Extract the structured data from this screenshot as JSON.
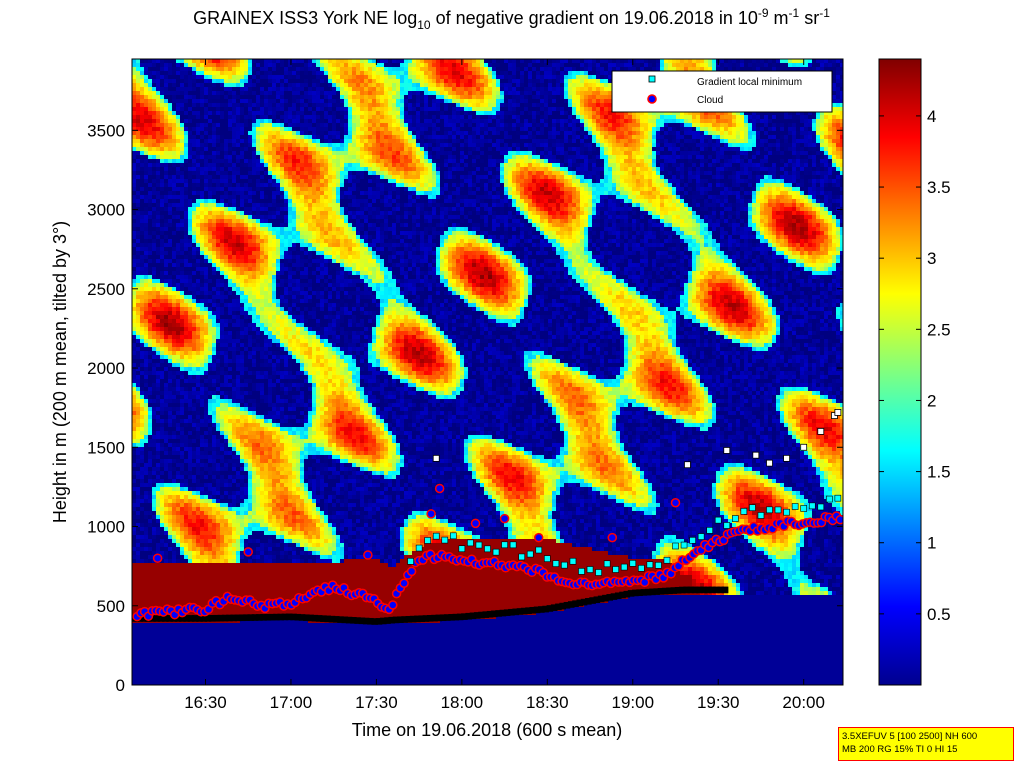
{
  "title": {
    "prefix": "GRAINEX ISS3 York NE log",
    "prefix_sub": "10",
    "middle": " of negative gradient on 19.06.2018 in 10",
    "exp1": "-9",
    "unit1": " m",
    "exp2": "-1",
    "unit2": " sr",
    "exp3": "-1"
  },
  "annotation": {
    "line1": "3.5XEFUV 5 [100 2500] NH 600",
    "line2": "MB 200 RG 15% TI 0 HI 15"
  },
  "chart_data": {
    "type": "heatmap",
    "xlabel": "Time on 19.06.2018 (600 s mean)",
    "ylabel": "Height in m (200 m mean, tilted by 3°)",
    "x_ticks": [
      "16:30",
      "17:00",
      "17:30",
      "18:00",
      "18:30",
      "19:00",
      "19:30",
      "20:00"
    ],
    "x_tick_hours": [
      16.5,
      17.0,
      17.5,
      18.0,
      18.5,
      19.0,
      19.5,
      20.0
    ],
    "xlim_hours": [
      16.07,
      20.23
    ],
    "y_ticks": [
      0,
      500,
      1000,
      1500,
      2000,
      2500,
      3000,
      3500
    ],
    "ylim": [
      0,
      3950
    ],
    "colorbar": {
      "ticks": [
        "0.5",
        "1",
        "1.5",
        "2",
        "2.5",
        "3",
        "3.5",
        "4"
      ],
      "tick_values": [
        0.5,
        1.0,
        1.5,
        2.0,
        2.5,
        3.0,
        3.5,
        4.0
      ],
      "range": [
        0,
        4.4
      ],
      "colormap": "jet"
    },
    "legend": {
      "position": "top-right",
      "items": [
        {
          "label": "Gradient local minimum",
          "marker": "square",
          "color": "#00ffff"
        },
        {
          "label": "Cloud",
          "marker": "circle",
          "face": "#0000ff",
          "edge": "#ff0000"
        }
      ]
    },
    "high_gradient_layer_top": [
      {
        "t": 16.1,
        "h": 770
      },
      {
        "t": 16.5,
        "h": 770
      },
      {
        "t": 17.0,
        "h": 770
      },
      {
        "t": 17.5,
        "h": 790
      },
      {
        "t": 17.6,
        "h": 740
      },
      {
        "t": 17.75,
        "h": 880
      },
      {
        "t": 18.0,
        "h": 930
      },
      {
        "t": 18.5,
        "h": 920
      },
      {
        "t": 19.0,
        "h": 800
      },
      {
        "t": 19.2,
        "h": 800
      },
      {
        "t": 19.3,
        "h": 690
      }
    ],
    "mixing_layer_base": [
      {
        "t": 16.1,
        "h": 420
      },
      {
        "t": 16.5,
        "h": 420
      },
      {
        "t": 17.0,
        "h": 430
      },
      {
        "t": 17.5,
        "h": 400
      },
      {
        "t": 17.6,
        "h": 410
      },
      {
        "t": 18.0,
        "h": 430
      },
      {
        "t": 18.5,
        "h": 480
      },
      {
        "t": 19.0,
        "h": 580
      },
      {
        "t": 19.3,
        "h": 600
      },
      {
        "t": 19.5,
        "h": 600
      }
    ],
    "cloud_layer": [
      {
        "t": 16.1,
        "h": 450
      },
      {
        "t": 16.3,
        "h": 460
      },
      {
        "t": 16.5,
        "h": 480
      },
      {
        "t": 16.65,
        "h": 560
      },
      {
        "t": 16.85,
        "h": 500
      },
      {
        "t": 17.0,
        "h": 520
      },
      {
        "t": 17.25,
        "h": 620
      },
      {
        "t": 17.45,
        "h": 550
      },
      {
        "t": 17.58,
        "h": 470
      },
      {
        "t": 17.65,
        "h": 640
      },
      {
        "t": 17.75,
        "h": 800
      },
      {
        "t": 17.9,
        "h": 820
      },
      {
        "t": 18.0,
        "h": 790
      },
      {
        "t": 18.2,
        "h": 760
      },
      {
        "t": 18.4,
        "h": 730
      },
      {
        "t": 18.5,
        "h": 700
      },
      {
        "t": 18.6,
        "h": 650
      },
      {
        "t": 18.8,
        "h": 640
      },
      {
        "t": 19.0,
        "h": 650
      },
      {
        "t": 19.2,
        "h": 700
      },
      {
        "t": 19.4,
        "h": 860
      },
      {
        "t": 19.6,
        "h": 960
      },
      {
        "t": 19.8,
        "h": 1000
      },
      {
        "t": 20.0,
        "h": 1030
      },
      {
        "t": 20.2,
        "h": 1050
      }
    ],
    "isolated_clouds": [
      {
        "t": 16.22,
        "h": 800
      },
      {
        "t": 16.75,
        "h": 840
      },
      {
        "t": 17.45,
        "h": 820
      },
      {
        "t": 17.87,
        "h": 1240
      },
      {
        "t": 17.82,
        "h": 1080
      },
      {
        "t": 18.08,
        "h": 1020
      },
      {
        "t": 18.25,
        "h": 1050
      },
      {
        "t": 18.45,
        "h": 930
      },
      {
        "t": 18.88,
        "h": 930
      },
      {
        "t": 19.25,
        "h": 1150
      }
    ],
    "high_gradient_minima": [
      {
        "t": 17.85,
        "h": 1430
      },
      {
        "t": 19.55,
        "h": 1480
      },
      {
        "t": 19.72,
        "h": 1450
      },
      {
        "t": 19.8,
        "h": 1400
      },
      {
        "t": 19.9,
        "h": 1430
      },
      {
        "t": 20.0,
        "h": 1500
      },
      {
        "t": 20.1,
        "h": 1600
      },
      {
        "t": 20.18,
        "h": 1700
      },
      {
        "t": 20.2,
        "h": 1720
      },
      {
        "t": 19.32,
        "h": 1390
      }
    ]
  }
}
